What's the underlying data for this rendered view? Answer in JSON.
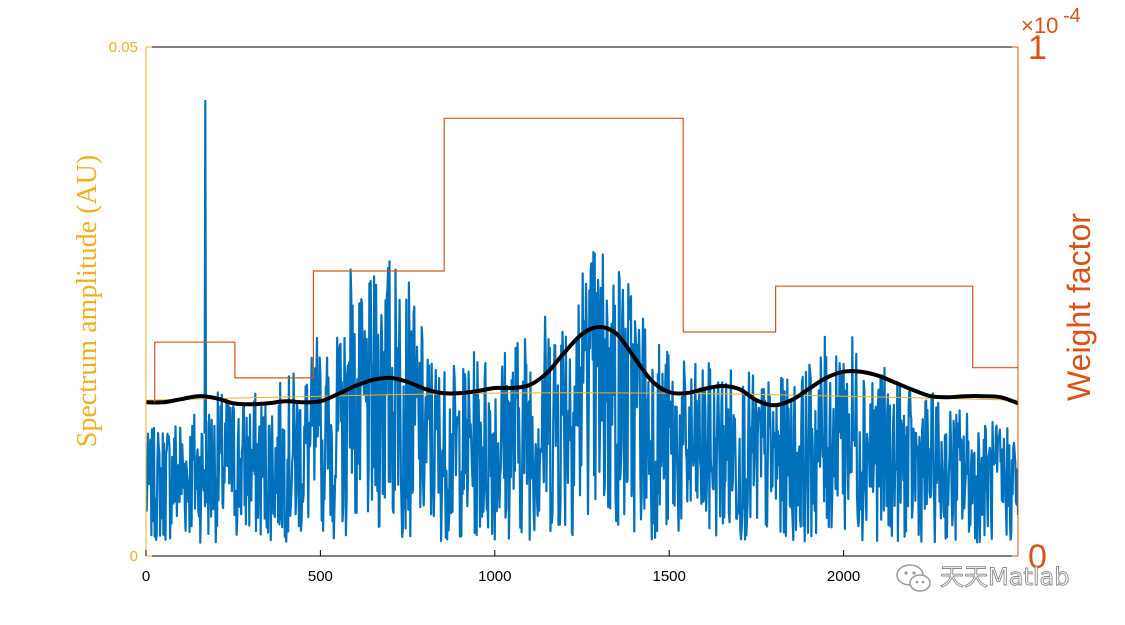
{
  "chart_data": {
    "type": "line",
    "title": "",
    "xlabel": "",
    "ylabel": "Spectrum amplitude (AU)",
    "ylabel_right": "Weight factor",
    "xlim": [
      0,
      2500
    ],
    "ylim": [
      0,
      0.05
    ],
    "ylim_right": [
      0,
      1
    ],
    "right_axis_exponent": "-4",
    "x_ticks": [
      {
        "value": 0,
        "label": "0"
      },
      {
        "value": 500,
        "label": "500"
      },
      {
        "value": 1000,
        "label": "1000"
      },
      {
        "value": 1500,
        "label": "1500"
      },
      {
        "value": 2000,
        "label": "2000"
      }
    ],
    "y_ticks": [
      {
        "value": 0,
        "label": "0"
      },
      {
        "value": 0.05,
        "label": "0.05"
      }
    ],
    "y_right_ticks": [
      {
        "value": 0,
        "label": "0"
      },
      {
        "value": 1,
        "label": "1"
      }
    ],
    "grid": false,
    "colors": {
      "spectrum": "#0072BD",
      "envelope": "#000000",
      "baseline": "#EDB120",
      "weight": "#D95319",
      "left_axis": "#EDB120",
      "right_axis": "#D95319",
      "x_axis": "#000000"
    },
    "series": [
      {
        "axis": "left",
        "style": "noisy-line",
        "spike": {
          "x": 170,
          "y": 0.0447
        },
        "bursts": [
          {
            "x": 495,
            "y": 0.022
          },
          {
            "x": 590,
            "y": 0.03
          },
          {
            "x": 680,
            "y": 0.023
          },
          {
            "x": 725,
            "y": 0.027
          },
          {
            "x": 1260,
            "y": 0.025
          },
          {
            "x": 1325,
            "y": 0.024
          },
          {
            "x": 1990,
            "y": 0.018
          }
        ],
        "points": [
          [
            0,
            0.008
          ],
          [
            50,
            0.009
          ],
          [
            100,
            0.01
          ],
          [
            150,
            0.01
          ],
          [
            200,
            0.011
          ],
          [
            250,
            0.011
          ],
          [
            300,
            0.011
          ],
          [
            350,
            0.011
          ],
          [
            400,
            0.012
          ],
          [
            450,
            0.013
          ],
          [
            500,
            0.014
          ],
          [
            550,
            0.015
          ],
          [
            600,
            0.017
          ],
          [
            650,
            0.019
          ],
          [
            700,
            0.021
          ],
          [
            750,
            0.019
          ],
          [
            800,
            0.015
          ],
          [
            850,
            0.013
          ],
          [
            900,
            0.013
          ],
          [
            950,
            0.014
          ],
          [
            1000,
            0.014
          ],
          [
            1050,
            0.015
          ],
          [
            1100,
            0.016
          ],
          [
            1150,
            0.017
          ],
          [
            1200,
            0.019
          ],
          [
            1250,
            0.021
          ],
          [
            1300,
            0.022
          ],
          [
            1350,
            0.021
          ],
          [
            1400,
            0.019
          ],
          [
            1450,
            0.016
          ],
          [
            1500,
            0.014
          ],
          [
            1550,
            0.013
          ],
          [
            1600,
            0.013
          ],
          [
            1650,
            0.013
          ],
          [
            1700,
            0.013
          ],
          [
            1750,
            0.012
          ],
          [
            1800,
            0.012
          ],
          [
            1850,
            0.012
          ],
          [
            1900,
            0.013
          ],
          [
            1950,
            0.015
          ],
          [
            2000,
            0.016
          ],
          [
            2050,
            0.015
          ],
          [
            2100,
            0.013
          ],
          [
            2150,
            0.012
          ],
          [
            2200,
            0.011
          ],
          [
            2250,
            0.011
          ],
          [
            2300,
            0.01
          ],
          [
            2350,
            0.01
          ],
          [
            2400,
            0.009
          ],
          [
            2450,
            0.009
          ],
          [
            2500,
            0.009
          ]
        ]
      },
      {
        "axis": "left",
        "style": "thick-line",
        "points": [
          [
            0,
            0.0151
          ],
          [
            50,
            0.0151
          ],
          [
            100,
            0.0154
          ],
          [
            150,
            0.0157
          ],
          [
            200,
            0.0155
          ],
          [
            250,
            0.015
          ],
          [
            300,
            0.0149
          ],
          [
            350,
            0.015
          ],
          [
            400,
            0.0152
          ],
          [
            450,
            0.0151
          ],
          [
            500,
            0.0152
          ],
          [
            550,
            0.0159
          ],
          [
            600,
            0.0167
          ],
          [
            650,
            0.0173
          ],
          [
            700,
            0.0175
          ],
          [
            750,
            0.0171
          ],
          [
            800,
            0.0164
          ],
          [
            850,
            0.016
          ],
          [
            900,
            0.016
          ],
          [
            950,
            0.0162
          ],
          [
            1000,
            0.0165
          ],
          [
            1050,
            0.0165
          ],
          [
            1100,
            0.0168
          ],
          [
            1150,
            0.018
          ],
          [
            1200,
            0.02
          ],
          [
            1250,
            0.0218
          ],
          [
            1300,
            0.0225
          ],
          [
            1350,
            0.0218
          ],
          [
            1400,
            0.0195
          ],
          [
            1450,
            0.0172
          ],
          [
            1500,
            0.0161
          ],
          [
            1550,
            0.016
          ],
          [
            1600,
            0.0164
          ],
          [
            1650,
            0.0167
          ],
          [
            1700,
            0.0164
          ],
          [
            1750,
            0.0153
          ],
          [
            1800,
            0.0148
          ],
          [
            1850,
            0.0153
          ],
          [
            1900,
            0.0164
          ],
          [
            1950,
            0.0175
          ],
          [
            2000,
            0.0181
          ],
          [
            2050,
            0.0181
          ],
          [
            2100,
            0.0177
          ],
          [
            2150,
            0.017
          ],
          [
            2200,
            0.0163
          ],
          [
            2250,
            0.0157
          ],
          [
            2300,
            0.0156
          ],
          [
            2350,
            0.0157
          ],
          [
            2400,
            0.0157
          ],
          [
            2450,
            0.0156
          ],
          [
            2500,
            0.015
          ]
        ]
      },
      {
        "axis": "left",
        "style": "thin-line",
        "points": [
          [
            0,
            0.0153
          ],
          [
            500,
            0.0157
          ],
          [
            1000,
            0.016
          ],
          [
            1500,
            0.016
          ],
          [
            2000,
            0.0157
          ],
          [
            2500,
            0.0153
          ]
        ]
      },
      {
        "axis": "right",
        "style": "step",
        "steps": [
          {
            "x0": 25,
            "x1": 255,
            "y": 0.42
          },
          {
            "x0": 255,
            "x1": 480,
            "y": 0.35
          },
          {
            "x0": 480,
            "x1": 855,
            "y": 0.56
          },
          {
            "x0": 855,
            "x1": 1540,
            "y": 0.86
          },
          {
            "x0": 1540,
            "x1": 1805,
            "y": 0.44
          },
          {
            "x0": 1805,
            "x1": 2370,
            "y": 0.53
          },
          {
            "x0": 2370,
            "x1": 2500,
            "y": 0.37
          }
        ]
      }
    ]
  },
  "watermark": {
    "icon": "wechat-icon",
    "text": "天天Matlab"
  }
}
